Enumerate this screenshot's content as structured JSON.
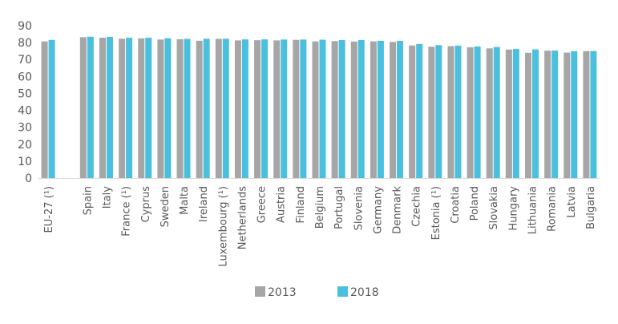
{
  "chart_data": {
    "type": "bar",
    "title": "",
    "xlabel": "",
    "ylabel": "",
    "ylim": [
      0,
      90
    ],
    "yticks": [
      0,
      10,
      20,
      30,
      40,
      50,
      60,
      70,
      80,
      90
    ],
    "grid": false,
    "legend_position": "bottom",
    "categories": [
      "EU-27 (¹)",
      "",
      "Spain",
      "Italy",
      "France (¹)",
      "Cyprus",
      "Sweden",
      "Malta",
      "Ireland",
      "Luxembourg (¹)",
      "Netherlands",
      "Greece",
      "Austria",
      "Finland",
      "Belgium",
      "Portugal",
      "Slovenia",
      "Germany",
      "Denmark",
      "Czechia",
      "Estonia (¹)",
      "Croatia",
      "Poland",
      "Slovakia",
      "Hungary",
      "Lithuania",
      "Romania",
      "Latvia",
      "Bulgaria"
    ],
    "series": [
      {
        "name": "2013",
        "color": "#a6a6a6",
        "values": [
          80.7,
          null,
          83.2,
          82.9,
          82.3,
          82.5,
          81.8,
          82.0,
          81.1,
          82.2,
          81.3,
          81.4,
          81.3,
          81.6,
          80.7,
          80.9,
          80.6,
          80.7,
          80.4,
          78.3,
          77.6,
          77.9,
          77.2,
          76.6,
          75.9,
          74.0,
          75.2,
          74.1,
          75.0
        ]
      },
      {
        "name": "2018",
        "color": "#4bc0de",
        "values": [
          81.6,
          null,
          83.5,
          83.4,
          82.9,
          82.9,
          82.6,
          82.2,
          82.3,
          82.3,
          81.9,
          81.9,
          81.8,
          81.8,
          81.7,
          81.5,
          81.5,
          81.0,
          81.0,
          79.1,
          78.5,
          78.2,
          77.7,
          77.4,
          76.2,
          76.0,
          75.3,
          74.9,
          75.0
        ]
      }
    ]
  }
}
